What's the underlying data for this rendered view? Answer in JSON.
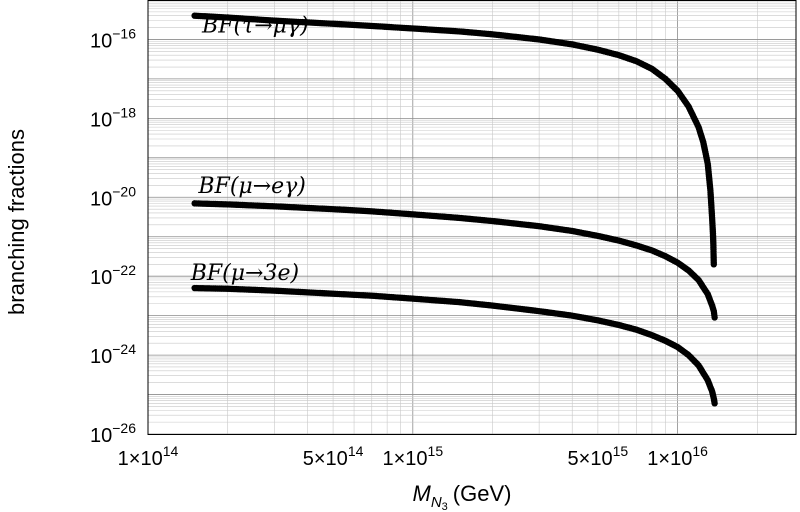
{
  "chart_data": {
    "type": "scatter",
    "title": "",
    "xlabel": "M_{N_3} (GeV)",
    "xlabel_main": "M",
    "xlabel_sub1": "N",
    "xlabel_sub2": "3",
    "xlabel_unit": "(GeV)",
    "ylabel": "branching fractions",
    "x_scale": "log",
    "y_scale": "log",
    "xlim": [
      100000000000000.0,
      2.8e+16
    ],
    "ylim": [
      1e-26,
      1e-15
    ],
    "grid": true,
    "x_ticks": [
      {
        "value": 100000000000000.0,
        "mantissa": "1×10",
        "exp": "14"
      },
      {
        "value": 500000000000000.0,
        "mantissa": "5×10",
        "exp": "14"
      },
      {
        "value": 1000000000000000.0,
        "mantissa": "1×10",
        "exp": "15"
      },
      {
        "value": 5000000000000000.0,
        "mantissa": "5×10",
        "exp": "15"
      },
      {
        "value": 1e+16,
        "mantissa": "1×10",
        "exp": "16"
      }
    ],
    "y_ticks": [
      {
        "value": 1e-16,
        "base": "10",
        "exp": "−16"
      },
      {
        "value": 1e-18,
        "base": "10",
        "exp": "−18"
      },
      {
        "value": 1e-20,
        "base": "10",
        "exp": "−20"
      },
      {
        "value": 1e-22,
        "base": "10",
        "exp": "−22"
      },
      {
        "value": 1e-24,
        "base": "10",
        "exp": "−24"
      },
      {
        "value": 1e-26,
        "base": "10",
        "exp": "−26"
      }
    ],
    "series": [
      {
        "name": "BF(τ→μγ)",
        "label_x": 160000000000000.0,
        "label_y": 1.5e-16,
        "points": [
          [
            150000000000000.0,
            4e-16
          ],
          [
            200000000000000.0,
            3.6e-16
          ],
          [
            300000000000000.0,
            3e-16
          ],
          [
            500000000000000.0,
            2.5e-16
          ],
          [
            700000000000000.0,
            2.2e-16
          ],
          [
            1000000000000000.0,
            1.9e-16
          ],
          [
            1500000000000000.0,
            1.6e-16
          ],
          [
            2000000000000000.0,
            1.35e-16
          ],
          [
            3000000000000000.0,
            1e-16
          ],
          [
            4000000000000000.0,
            7.5e-17
          ],
          [
            5000000000000000.0,
            5.5e-17
          ],
          [
            6000000000000000.0,
            4e-17
          ],
          [
            7000000000000000.0,
            2.8e-17
          ],
          [
            8000000000000000.0,
            1.8e-17
          ],
          [
            9000000000000000.0,
            1e-17
          ],
          [
            1e+16,
            5e-18
          ],
          [
            1.1e+16,
            2e-18
          ],
          [
            1.2e+16,
            6e-19
          ],
          [
            1.25e+16,
            2.5e-19
          ],
          [
            1.3e+16,
            7e-20
          ],
          [
            1.33e+16,
            1.5e-20
          ],
          [
            1.35e+16,
            3e-21
          ],
          [
            1.36e+16,
            1.2e-21
          ],
          [
            1.365e+16,
            6e-22
          ],
          [
            1.37e+16,
            2e-22
          ]
        ]
      },
      {
        "name": "BF(μ→eγ)",
        "label_x": 155000000000000.0,
        "label_y": 1.3e-20,
        "points": [
          [
            150000000000000.0,
            7e-21
          ],
          [
            200000000000000.0,
            6.6e-21
          ],
          [
            300000000000000.0,
            5.9e-21
          ],
          [
            500000000000000.0,
            5e-21
          ],
          [
            700000000000000.0,
            4.4e-21
          ],
          [
            1000000000000000.0,
            3.7e-21
          ],
          [
            1500000000000000.0,
            3e-21
          ],
          [
            2000000000000000.0,
            2.5e-21
          ],
          [
            3000000000000000.0,
            1.85e-21
          ],
          [
            4000000000000000.0,
            1.4e-21
          ],
          [
            5000000000000000.0,
            1.05e-21
          ],
          [
            6000000000000000.0,
            8e-22
          ],
          [
            7000000000000000.0,
            6e-22
          ],
          [
            8000000000000000.0,
            4.5e-22
          ],
          [
            9000000000000000.0,
            3.2e-22
          ],
          [
            1e+16,
            2.2e-22
          ],
          [
            1.1e+16,
            1.4e-22
          ],
          [
            1.2e+16,
            8e-23
          ],
          [
            1.3e+16,
            3.5e-23
          ],
          [
            1.35e+16,
            1.8e-23
          ],
          [
            1.37e+16,
            1.3e-23
          ],
          [
            1.38e+16,
            9e-24
          ]
        ]
      },
      {
        "name": "BF(μ→3e)",
        "label_x": 145000000000000.0,
        "label_y": 8e-23,
        "points": [
          [
            150000000000000.0,
            5e-23
          ],
          [
            200000000000000.0,
            4.8e-23
          ],
          [
            300000000000000.0,
            4.3e-23
          ],
          [
            500000000000000.0,
            3.6e-23
          ],
          [
            700000000000000.0,
            3.2e-23
          ],
          [
            1000000000000000.0,
            2.7e-23
          ],
          [
            1500000000000000.0,
            2.2e-23
          ],
          [
            2000000000000000.0,
            1.8e-23
          ],
          [
            3000000000000000.0,
            1.3e-23
          ],
          [
            4000000000000000.0,
            1e-23
          ],
          [
            5000000000000000.0,
            7.6e-24
          ],
          [
            6000000000000000.0,
            5.8e-24
          ],
          [
            7000000000000000.0,
            4.4e-24
          ],
          [
            8000000000000000.0,
            3.2e-24
          ],
          [
            9000000000000000.0,
            2.3e-24
          ],
          [
            1e+16,
            1.6e-24
          ],
          [
            1.1e+16,
            1e-24
          ],
          [
            1.2e+16,
            5.5e-25
          ],
          [
            1.3e+16,
            2.3e-25
          ],
          [
            1.35e+16,
            1.2e-25
          ],
          [
            1.37e+16,
            8e-26
          ],
          [
            1.38e+16,
            6e-26
          ]
        ]
      }
    ]
  }
}
